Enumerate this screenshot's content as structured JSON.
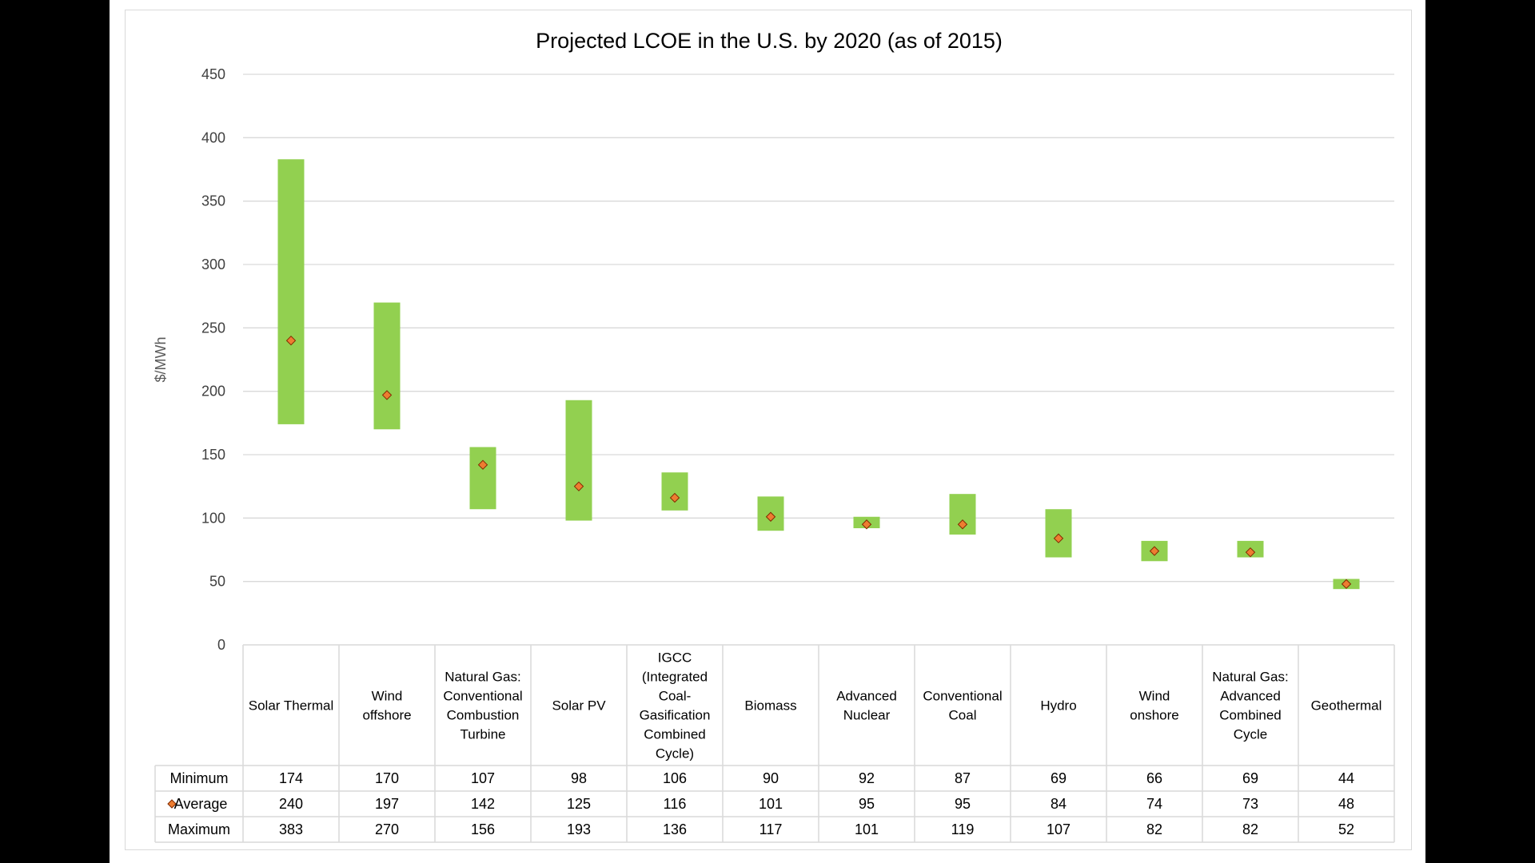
{
  "chart_data": {
    "type": "bar",
    "title": "Projected LCOE in the U.S. by 2020 (as of 2015)",
    "ylabel": "$/MWh",
    "xlabel": "",
    "ylim": [
      0,
      450
    ],
    "yticks": [
      0,
      50,
      100,
      150,
      200,
      250,
      300,
      350,
      400,
      450
    ],
    "grid": true,
    "categories": [
      "Solar Thermal",
      "Wind offshore",
      "Natural Gas: Conventional Combustion Turbine",
      "Solar PV",
      "IGCC (Integrated Coal-Gasification Combined Cycle)",
      "Biomass",
      "Advanced Nuclear",
      "Conventional Coal",
      "Hydro",
      "Wind onshore",
      "Natural Gas: Advanced Combined Cycle",
      "Geothermal"
    ],
    "category_lines": [
      [
        "Solar Thermal"
      ],
      [
        "Wind",
        "offshore"
      ],
      [
        "Natural Gas:",
        "Conventional",
        "Combustion",
        "Turbine"
      ],
      [
        "Solar PV"
      ],
      [
        "IGCC",
        "(Integrated",
        "Coal-",
        "Gasification",
        "Combined",
        "Cycle)"
      ],
      [
        "Biomass"
      ],
      [
        "Advanced",
        "Nuclear"
      ],
      [
        "Conventional",
        "Coal"
      ],
      [
        "Hydro"
      ],
      [
        "Wind",
        "onshore"
      ],
      [
        "Natural Gas:",
        "Advanced",
        "Combined",
        "Cycle"
      ],
      [
        "Geothermal"
      ]
    ],
    "series": [
      {
        "name": "Minimum",
        "values": [
          174,
          170,
          107,
          98,
          106,
          90,
          92,
          87,
          69,
          66,
          69,
          44
        ]
      },
      {
        "name": "Average",
        "values": [
          240,
          197,
          142,
          125,
          116,
          101,
          95,
          95,
          84,
          74,
          73,
          48
        ]
      },
      {
        "name": "Maximum",
        "values": [
          383,
          270,
          156,
          193,
          136,
          117,
          101,
          119,
          107,
          82,
          82,
          52
        ]
      }
    ],
    "colors": {
      "range_bar": "#92d050",
      "marker_fill": "#ed7d31",
      "marker_stroke": "#7f2a00",
      "gridline": "#d9d9d9",
      "table_border": "#d9d9d9"
    }
  }
}
